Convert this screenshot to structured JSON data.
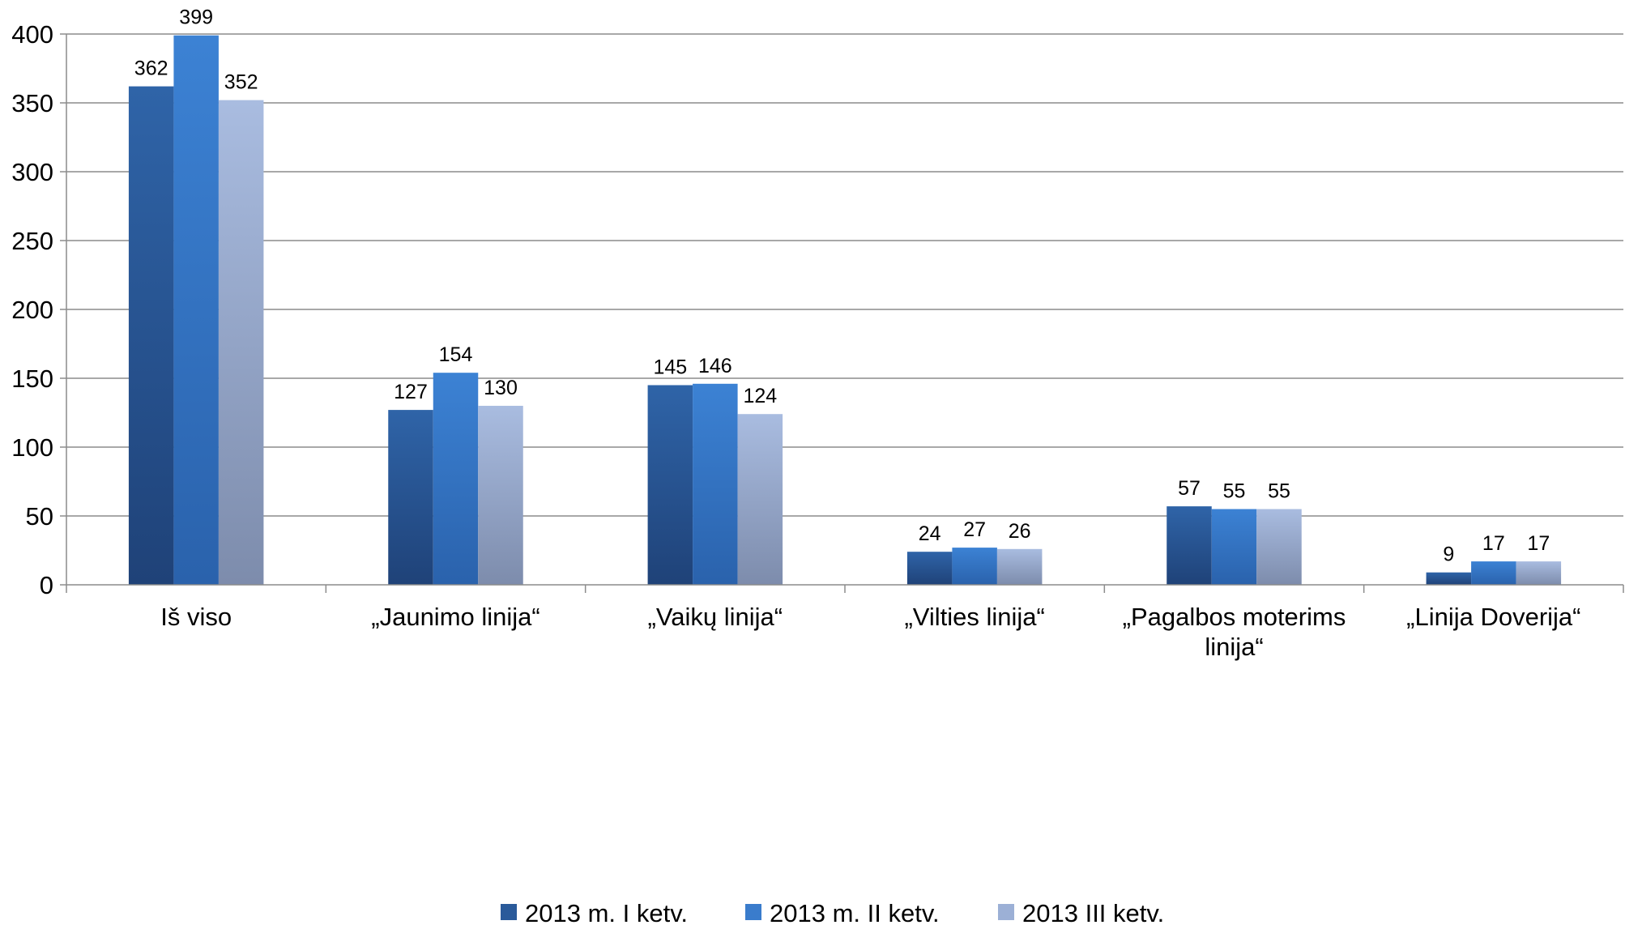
{
  "chart_data": {
    "type": "bar",
    "title": "",
    "xlabel": "",
    "ylabel": "",
    "categories": [
      [
        "Iš viso"
      ],
      [
        "„Jaunimo linija“"
      ],
      [
        "„Vaikų linija“"
      ],
      [
        "„Vilties linija“"
      ],
      [
        "„Pagalbos moterims",
        "linija“"
      ],
      [
        "„Linija Doverija“"
      ]
    ],
    "series": [
      {
        "name": "2013 m. I ketv.",
        "values": [
          362,
          127,
          145,
          24,
          57,
          9
        ]
      },
      {
        "name": "2013 m. II ketv.",
        "values": [
          399,
          154,
          146,
          27,
          55,
          17
        ]
      },
      {
        "name": "2013 III ketv.",
        "values": [
          352,
          130,
          124,
          26,
          55,
          17
        ]
      }
    ],
    "ylim": [
      0,
      400
    ],
    "yticks": [
      0,
      50,
      100,
      150,
      200,
      250,
      300,
      350,
      400
    ],
    "grid": true,
    "legend_position": "bottom",
    "colors": {
      "series": [
        {
          "top": "#2f64a8",
          "bottom": "#1f4278",
          "legend": "#2a5a9a"
        },
        {
          "top": "#3c82d4",
          "bottom": "#2a62ac",
          "legend": "#3a7ccc"
        },
        {
          "top": "#a9bce0",
          "bottom": "#7d8cac",
          "legend": "#9cb0d6"
        }
      ],
      "grid": "#8c8c8c",
      "axis": "#8c8c8c"
    }
  }
}
